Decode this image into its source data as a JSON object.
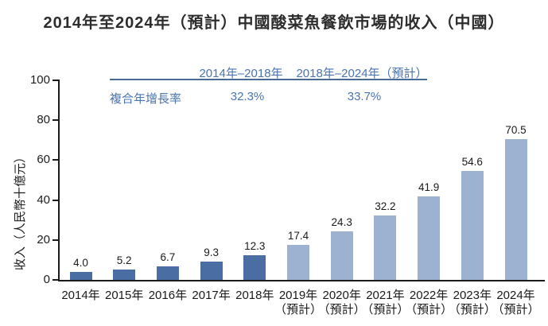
{
  "title": "2014年至2024年（預計）中國酸菜魚餐飲市場的收入（中國）",
  "cagr": {
    "row_label": "複合年增長率",
    "periods": [
      {
        "label": "2014年–2018年",
        "value": "32.3%"
      },
      {
        "label": "2018年–2024年（預計）",
        "value": "33.7%"
      }
    ]
  },
  "chart_data": {
    "type": "bar",
    "title": "2014年至2024年（預計）中國酸菜魚餐飲市場的收入（中國）",
    "ylabel": "收入（人民幣十億元）",
    "xlabel": "",
    "ylim": [
      0,
      100
    ],
    "yticks": [
      0,
      20,
      40,
      60,
      80,
      100
    ],
    "grid": false,
    "legend_position": "none",
    "bar_colors": {
      "historical": "#4a6ea4",
      "forecast": "#9db1d1"
    },
    "bars": [
      {
        "category": "2014年",
        "sublabel": "",
        "value": 4.0,
        "label": "4.0",
        "segment": "historical"
      },
      {
        "category": "2015年",
        "sublabel": "",
        "value": 5.2,
        "label": "5.2",
        "segment": "historical"
      },
      {
        "category": "2016年",
        "sublabel": "",
        "value": 6.7,
        "label": "6.7",
        "segment": "historical"
      },
      {
        "category": "2017年",
        "sublabel": "",
        "value": 9.3,
        "label": "9.3",
        "segment": "historical"
      },
      {
        "category": "2018年",
        "sublabel": "",
        "value": 12.3,
        "label": "12.3",
        "segment": "historical"
      },
      {
        "category": "2019年",
        "sublabel": "（預計）",
        "value": 17.4,
        "label": "17.4",
        "segment": "forecast"
      },
      {
        "category": "2020年",
        "sublabel": "（預計）",
        "value": 24.3,
        "label": "24.3",
        "segment": "forecast"
      },
      {
        "category": "2021年",
        "sublabel": "（預計）",
        "value": 32.2,
        "label": "32.2",
        "segment": "forecast"
      },
      {
        "category": "2022年",
        "sublabel": "（預計）",
        "value": 41.9,
        "label": "41.9",
        "segment": "forecast"
      },
      {
        "category": "2023年",
        "sublabel": "（預計）",
        "value": 54.6,
        "label": "54.6",
        "segment": "forecast"
      },
      {
        "category": "2024年",
        "sublabel": "（預計）",
        "value": 70.5,
        "label": "70.5",
        "segment": "forecast"
      }
    ]
  },
  "colors": {
    "accent_text_blue": "#4a74b0",
    "rule_blue": "#4a6a96",
    "axis_black": "#1a1a1a",
    "bar_historical": "#4a6ea4",
    "bar_forecast": "#9db1d1",
    "background": "#ffffff"
  }
}
